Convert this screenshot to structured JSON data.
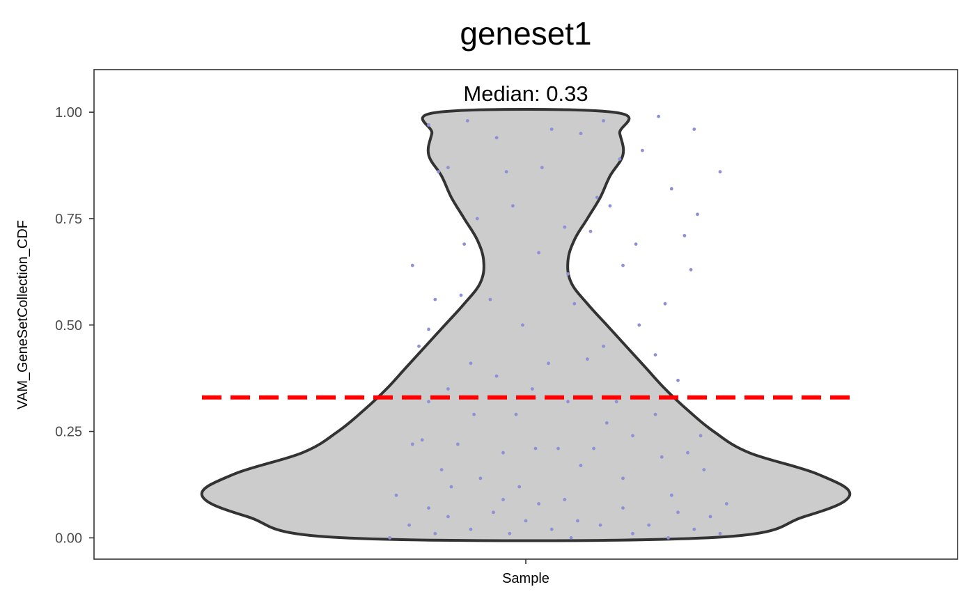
{
  "chart_data": {
    "type": "violin",
    "title": "geneset1",
    "xlabel": "Sample",
    "ylabel": "VAM_GeneSetCollection_CDF",
    "ylim": [
      -0.05,
      1.1
    ],
    "yticks": [
      0.0,
      0.25,
      0.5,
      0.75,
      1.0
    ],
    "ytick_labels": [
      "0.00",
      "0.25",
      "0.50",
      "0.75",
      "1.00"
    ],
    "categories": [
      "Sample"
    ],
    "x_tick_labels": [
      ""
    ],
    "median": 0.33,
    "median_label": "Median: 0.33",
    "grid": false,
    "legend": "none",
    "colors": {
      "violin_fill": "#cccccc",
      "violin_stroke": "#333333",
      "points": "#8f8fd6",
      "median_line": "#ff0000",
      "panel_border": "#333333",
      "background": "#ffffff"
    },
    "density_profile": {
      "y": [
        0.0,
        0.05,
        0.1,
        0.15,
        0.2,
        0.25,
        0.3,
        0.35,
        0.4,
        0.45,
        0.5,
        0.55,
        0.6,
        0.65,
        0.7,
        0.75,
        0.8,
        0.85,
        0.9,
        0.95,
        1.0
      ],
      "half_width": [
        0.56,
        0.86,
        1.0,
        0.9,
        0.69,
        0.58,
        0.5,
        0.43,
        0.37,
        0.31,
        0.25,
        0.19,
        0.14,
        0.13,
        0.15,
        0.19,
        0.23,
        0.26,
        0.3,
        0.29,
        0.27
      ]
    },
    "points": [
      {
        "x": -0.3,
        "y": 0.97
      },
      {
        "x": -0.18,
        "y": 0.98
      },
      {
        "x": 0.08,
        "y": 0.96
      },
      {
        "x": 0.24,
        "y": 0.98
      },
      {
        "x": 0.41,
        "y": 0.99
      },
      {
        "x": -0.09,
        "y": 0.94
      },
      {
        "x": 0.17,
        "y": 0.95
      },
      {
        "x": 0.36,
        "y": 0.91
      },
      {
        "x": -0.24,
        "y": 0.87
      },
      {
        "x": 0.52,
        "y": 0.96
      },
      {
        "x": 0.05,
        "y": 0.87
      },
      {
        "x": 0.29,
        "y": 0.89
      },
      {
        "x": -0.06,
        "y": 0.86
      },
      {
        "x": 0.6,
        "y": 0.86
      },
      {
        "x": -0.27,
        "y": 0.86
      },
      {
        "x": 0.22,
        "y": 0.8
      },
      {
        "x": 0.45,
        "y": 0.82
      },
      {
        "x": -0.15,
        "y": 0.75
      },
      {
        "x": 0.12,
        "y": 0.73
      },
      {
        "x": 0.26,
        "y": 0.78
      },
      {
        "x": -0.04,
        "y": 0.78
      },
      {
        "x": 0.53,
        "y": 0.76
      },
      {
        "x": 0.34,
        "y": 0.69
      },
      {
        "x": -0.19,
        "y": 0.69
      },
      {
        "x": 0.49,
        "y": 0.71
      },
      {
        "x": 0.2,
        "y": 0.72
      },
      {
        "x": -0.35,
        "y": 0.64
      },
      {
        "x": 0.04,
        "y": 0.67
      },
      {
        "x": 0.3,
        "y": 0.64
      },
      {
        "x": 0.51,
        "y": 0.63
      },
      {
        "x": 0.13,
        "y": 0.62
      },
      {
        "x": -0.2,
        "y": 0.57
      },
      {
        "x": 0.43,
        "y": 0.55
      },
      {
        "x": -0.11,
        "y": 0.56
      },
      {
        "x": 0.15,
        "y": 0.55
      },
      {
        "x": -0.28,
        "y": 0.56
      },
      {
        "x": 0.35,
        "y": 0.5
      },
      {
        "x": -0.01,
        "y": 0.5
      },
      {
        "x": 0.24,
        "y": 0.45
      },
      {
        "x": -0.3,
        "y": 0.49
      },
      {
        "x": 0.4,
        "y": 0.43
      },
      {
        "x": 0.07,
        "y": 0.41
      },
      {
        "x": -0.17,
        "y": 0.41
      },
      {
        "x": 0.19,
        "y": 0.42
      },
      {
        "x": -0.33,
        "y": 0.45
      },
      {
        "x": 0.47,
        "y": 0.37
      },
      {
        "x": -0.09,
        "y": 0.38
      },
      {
        "x": 0.02,
        "y": 0.35
      },
      {
        "x": 0.28,
        "y": 0.32
      },
      {
        "x": -0.24,
        "y": 0.35
      },
      {
        "x": 0.46,
        "y": 0.33
      },
      {
        "x": -0.3,
        "y": 0.32
      },
      {
        "x": 0.13,
        "y": 0.32
      },
      {
        "x": 0.4,
        "y": 0.29
      },
      {
        "x": -0.16,
        "y": 0.29
      },
      {
        "x": 0.25,
        "y": 0.27
      },
      {
        "x": -0.03,
        "y": 0.29
      },
      {
        "x": 0.54,
        "y": 0.24
      },
      {
        "x": -0.32,
        "y": 0.23
      },
      {
        "x": 0.1,
        "y": 0.21
      },
      {
        "x": 0.33,
        "y": 0.24
      },
      {
        "x": -0.21,
        "y": 0.22
      },
      {
        "x": 0.5,
        "y": 0.2
      },
      {
        "x": 0.42,
        "y": 0.19
      },
      {
        "x": -0.35,
        "y": 0.22
      },
      {
        "x": 0.21,
        "y": 0.21
      },
      {
        "x": -0.07,
        "y": 0.2
      },
      {
        "x": 0.03,
        "y": 0.21
      },
      {
        "x": -0.26,
        "y": 0.16
      },
      {
        "x": 0.55,
        "y": 0.16
      },
      {
        "x": -0.23,
        "y": 0.12
      },
      {
        "x": 0.17,
        "y": 0.17
      },
      {
        "x": -0.4,
        "y": 0.1
      },
      {
        "x": -0.02,
        "y": 0.12
      },
      {
        "x": 0.3,
        "y": 0.14
      },
      {
        "x": -0.14,
        "y": 0.14
      },
      {
        "x": 0.45,
        "y": 0.1
      },
      {
        "x": 0.62,
        "y": 0.08
      },
      {
        "x": -0.3,
        "y": 0.07
      },
      {
        "x": 0.12,
        "y": 0.09
      },
      {
        "x": 0.04,
        "y": 0.08
      },
      {
        "x": -0.07,
        "y": 0.09
      },
      {
        "x": 0.3,
        "y": 0.07
      },
      {
        "x": 0.47,
        "y": 0.06
      },
      {
        "x": -0.24,
        "y": 0.05
      },
      {
        "x": 0.57,
        "y": 0.05
      },
      {
        "x": -0.1,
        "y": 0.06
      },
      {
        "x": 0.16,
        "y": 0.04
      },
      {
        "x": 0.38,
        "y": 0.03
      },
      {
        "x": -0.36,
        "y": 0.03
      },
      {
        "x": 0.0,
        "y": 0.04
      },
      {
        "x": 0.23,
        "y": 0.03
      },
      {
        "x": 0.52,
        "y": 0.02
      },
      {
        "x": -0.17,
        "y": 0.02
      },
      {
        "x": 0.08,
        "y": 0.02
      },
      {
        "x": -0.05,
        "y": 0.01
      },
      {
        "x": 0.33,
        "y": 0.01
      },
      {
        "x": -0.28,
        "y": 0.01
      },
      {
        "x": 0.6,
        "y": 0.01
      },
      {
        "x": 0.14,
        "y": 0.0
      },
      {
        "x": -0.42,
        "y": 0.0
      },
      {
        "x": 0.44,
        "y": 0.0
      }
    ]
  }
}
